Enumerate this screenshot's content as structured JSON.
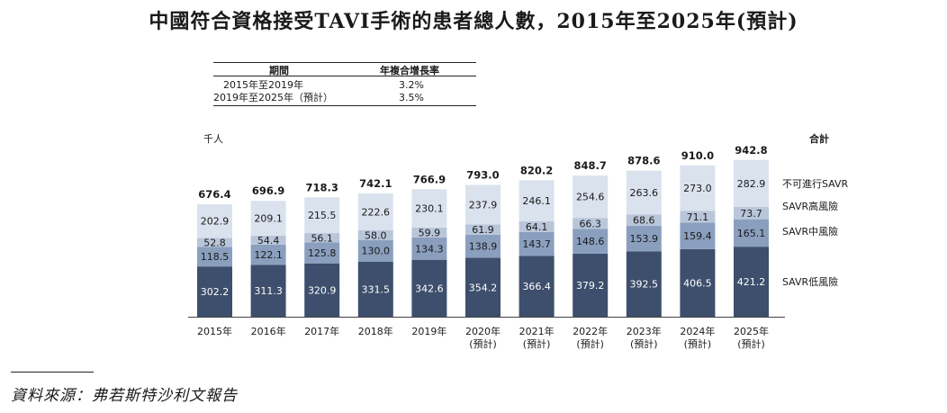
{
  "title": "中國符合資格接受TAVI手術的患者總人數，2015年至2025年(預計)",
  "cagr_table": {
    "headers": [
      "期間",
      "年複合增長率"
    ],
    "rows": [
      {
        "period": "2015年至2019年",
        "rate": "3.2%"
      },
      {
        "period": "2019年至2025年（預計）",
        "rate": "3.5%"
      }
    ]
  },
  "source": "資料來源：弗若斯特沙利文報告",
  "chart_data": {
    "type": "bar",
    "stacked": true,
    "unit_label": "千人",
    "categories": [
      "2015年",
      "2016年",
      "2017年",
      "2018年",
      "2019年",
      "2020年",
      "2021年",
      "2022年",
      "2023年",
      "2024年",
      "2025年"
    ],
    "category_sublabels": [
      "",
      "",
      "",
      "",
      "",
      "(預計)",
      "(預計)",
      "(預計)",
      "(預計)",
      "(預計)",
      "(預計)"
    ],
    "series": [
      {
        "name": "SAVR低風險",
        "color": "#3d4f6c",
        "label_color": "#ffffff",
        "values": [
          302.2,
          311.3,
          320.9,
          331.5,
          342.6,
          354.2,
          366.4,
          379.2,
          392.5,
          406.5,
          421.2
        ]
      },
      {
        "name": "SAVR中風險",
        "color": "#8a9fbe",
        "label_color": "#1a1a1a",
        "values": [
          118.5,
          122.1,
          125.8,
          130.0,
          134.3,
          138.9,
          143.7,
          148.6,
          153.9,
          159.4,
          165.1
        ]
      },
      {
        "name": "SAVR高風險",
        "color": "#b9c6da",
        "label_color": "#1a1a1a",
        "values": [
          52.8,
          54.4,
          56.1,
          58.0,
          59.9,
          61.9,
          64.1,
          66.3,
          68.6,
          71.1,
          73.7
        ]
      },
      {
        "name": "不可進行SAVR",
        "color": "#dae2ee",
        "label_color": "#1a1a1a",
        "values": [
          202.9,
          209.1,
          215.5,
          222.6,
          230.1,
          237.9,
          246.1,
          254.6,
          263.6,
          273.0,
          282.9
        ]
      }
    ],
    "totals_label": "合計",
    "totals": [
      676.4,
      696.9,
      718.3,
      742.1,
      766.9,
      793.0,
      820.2,
      848.7,
      878.6,
      910.0,
      942.8
    ]
  }
}
